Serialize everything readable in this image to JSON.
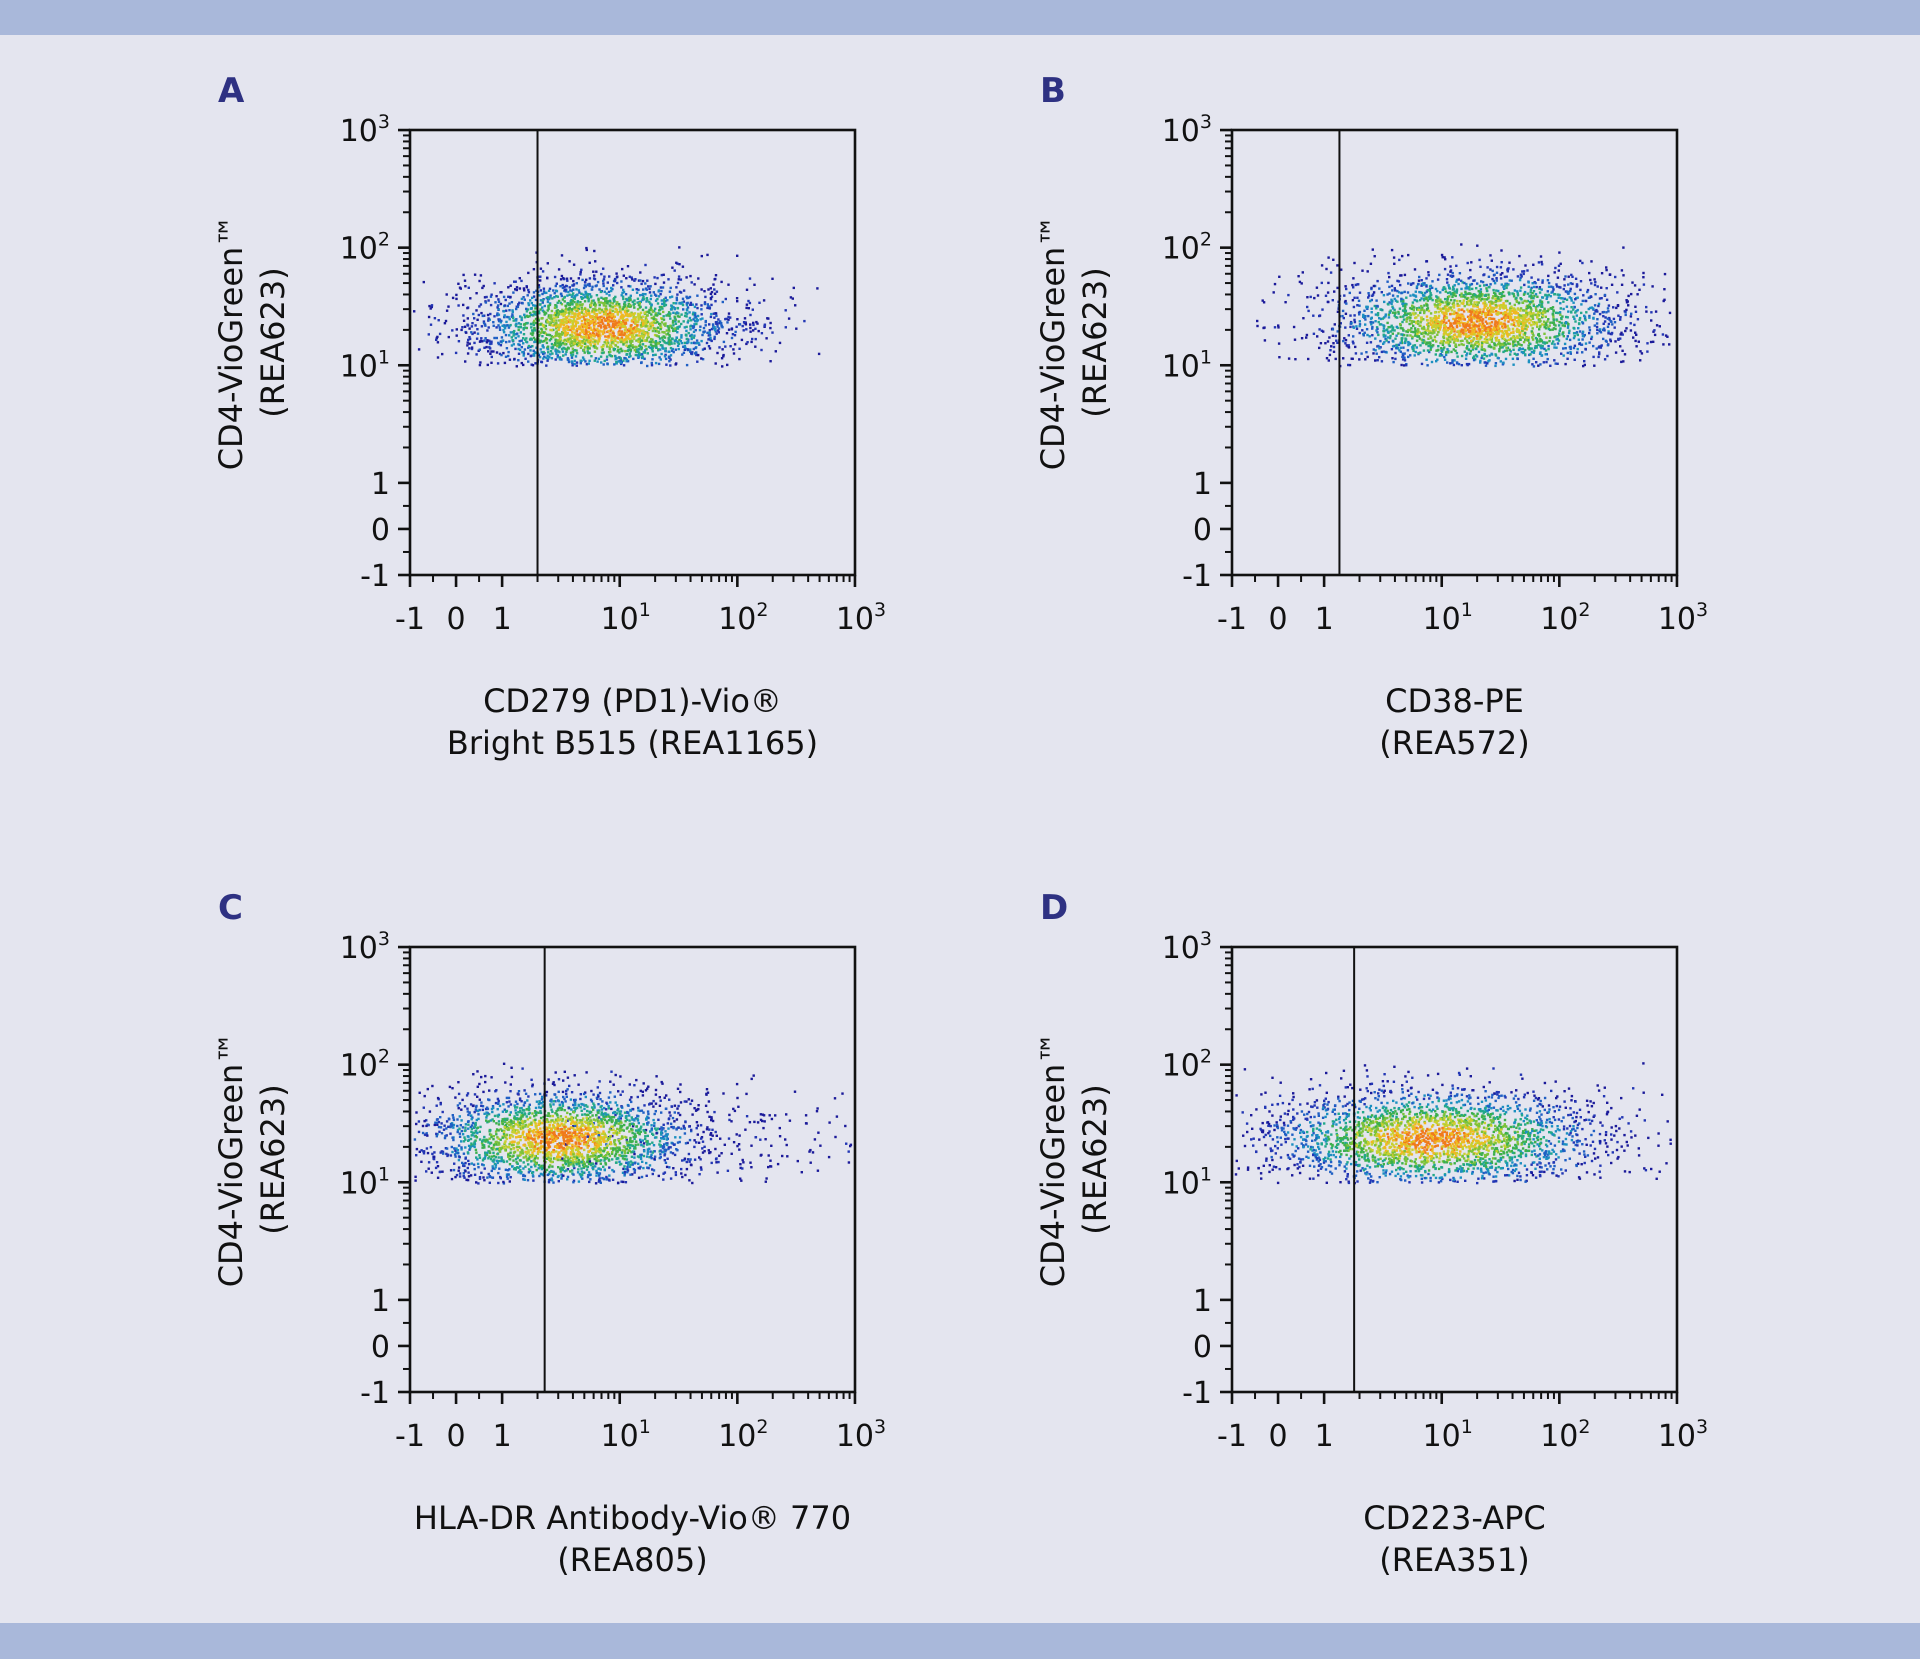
{
  "colors": {
    "background": "#e4e5ef",
    "band": "#a9b8da",
    "panel_letter": "#2e3182",
    "axis": "#111111"
  },
  "chart_data": [
    {
      "panel": "A",
      "type": "scatter",
      "density_plot": true,
      "xlabel": [
        "CD279 (PD1)-Vio®",
        "Bright B515 (REA1165)"
      ],
      "ylabel": [
        "CD4-VioGreen™",
        "(REA623)"
      ],
      "xlim": [
        -1,
        1000
      ],
      "ylim": [
        -1,
        1000
      ],
      "scale": "biexponential",
      "ticks": [
        {
          "base": "-1"
        },
        {
          "base": "0"
        },
        {
          "base": "1"
        },
        {
          "base": "10",
          "exp": "1"
        },
        {
          "base": "10",
          "exp": "2"
        },
        {
          "base": "10",
          "exp": "3"
        }
      ],
      "gate_x": 2,
      "population": {
        "center": [
          7,
          22
        ],
        "x_extent": [
          0.5,
          110
        ],
        "y_extent": [
          9,
          60
        ],
        "y_min": 10
      }
    },
    {
      "panel": "B",
      "type": "scatter",
      "density_plot": true,
      "xlabel": [
        "CD38-PE",
        "(REA572)"
      ],
      "ylabel": [
        "CD4-VioGreen™",
        "(REA623)"
      ],
      "xlim": [
        -1,
        1000
      ],
      "ylim": [
        -1,
        1000
      ],
      "scale": "biexponential",
      "ticks": [
        {
          "base": "-1"
        },
        {
          "base": "0"
        },
        {
          "base": "1"
        },
        {
          "base": "10",
          "exp": "1"
        },
        {
          "base": "10",
          "exp": "2"
        },
        {
          "base": "10",
          "exp": "3"
        }
      ],
      "gate_x": 1.35,
      "population": {
        "center": [
          20,
          24
        ],
        "x_extent": [
          -0.5,
          90
        ],
        "y_extent": [
          9,
          70
        ],
        "y_min": 10
      }
    },
    {
      "panel": "C",
      "type": "scatter",
      "density_plot": true,
      "xlabel": [
        "HLA-DR Antibody-Vio® 770",
        "(REA805)"
      ],
      "ylabel": [
        "CD4-VioGreen™",
        "(REA623)"
      ],
      "xlim": [
        -1,
        1000
      ],
      "ylim": [
        -1,
        1000
      ],
      "scale": "biexponential",
      "ticks": [
        {
          "base": "-1"
        },
        {
          "base": "0"
        },
        {
          "base": "1"
        },
        {
          "base": "10",
          "exp": "1"
        },
        {
          "base": "10",
          "exp": "2"
        },
        {
          "base": "10",
          "exp": "3"
        }
      ],
      "gate_x": 2.3,
      "population": {
        "center": [
          3,
          24
        ],
        "x_extent": [
          -1,
          40
        ],
        "y_extent": [
          9,
          65
        ],
        "y_min": 10,
        "tail_to_x": 1000
      }
    },
    {
      "panel": "D",
      "type": "scatter",
      "density_plot": true,
      "xlabel": [
        "CD223-APC",
        "(REA351)"
      ],
      "ylabel": [
        "CD4-VioGreen™",
        "(REA623)"
      ],
      "xlim": [
        -1,
        1000
      ],
      "ylim": [
        -1,
        1000
      ],
      "scale": "biexponential",
      "ticks": [
        {
          "base": "-1"
        },
        {
          "base": "0"
        },
        {
          "base": "1"
        },
        {
          "base": "10",
          "exp": "1"
        },
        {
          "base": "10",
          "exp": "2"
        },
        {
          "base": "10",
          "exp": "3"
        }
      ],
      "gate_x": 1.8,
      "population": {
        "center": [
          8,
          24
        ],
        "x_extent": [
          -0.8,
          160
        ],
        "y_extent": [
          9,
          65
        ],
        "y_min": 10
      }
    }
  ]
}
